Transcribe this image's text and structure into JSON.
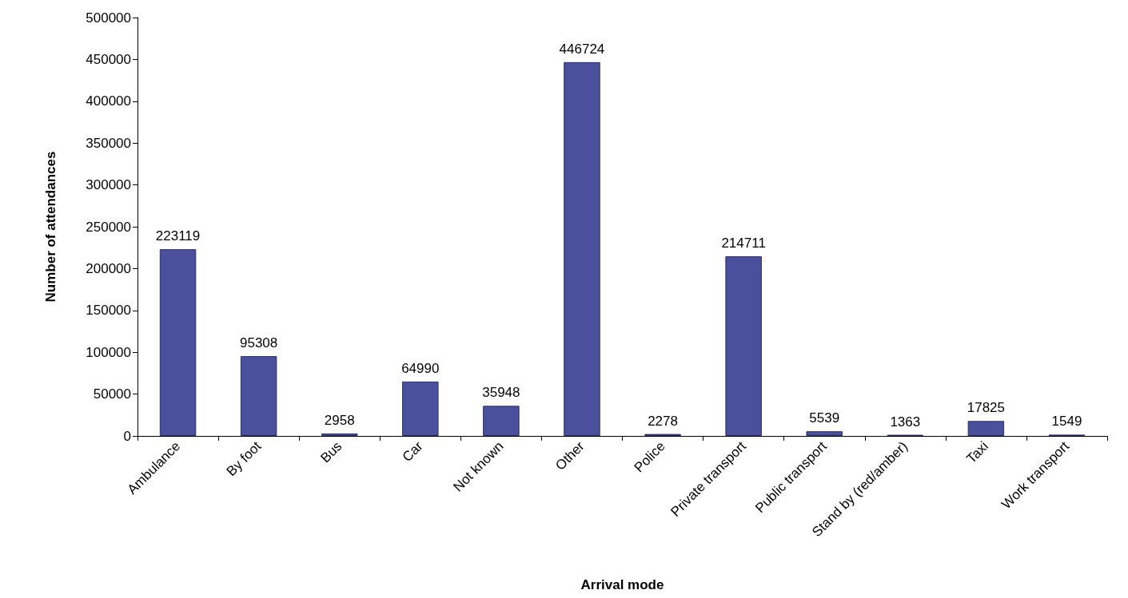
{
  "chart_data": {
    "type": "bar",
    "xlabel": "Arrival mode",
    "ylabel": "Number of attendances",
    "categories": [
      "Ambulance",
      "By foot",
      "Bus",
      "Car",
      "Not known",
      "Other",
      "Police",
      "Private transport",
      "Public transport",
      "Stand by (red/amber)",
      "Taxi",
      "Work transport"
    ],
    "values": [
      223119,
      95308,
      2958,
      64990,
      35948,
      446724,
      2278,
      214711,
      5539,
      1363,
      17825,
      1549
    ],
    "color": "#4b509c",
    "ylim": [
      0,
      500000
    ],
    "yticks": [
      0,
      50000,
      100000,
      150000,
      200000,
      250000,
      300000,
      350000,
      400000,
      450000,
      500000
    ],
    "data_labels": true,
    "grid": false
  }
}
